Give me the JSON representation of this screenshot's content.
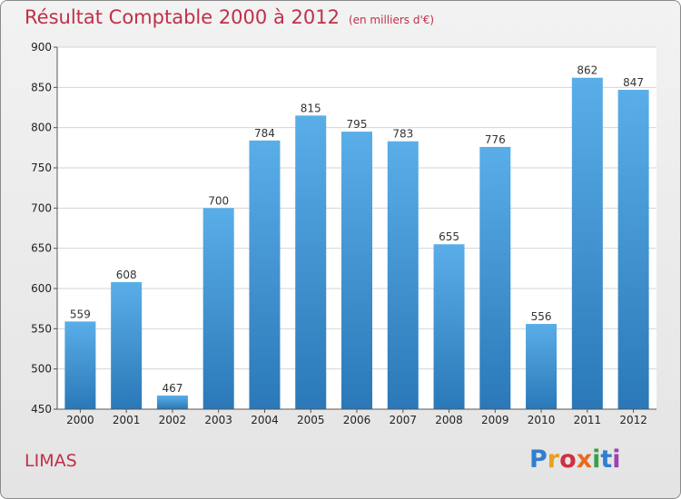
{
  "title": "Résultat Comptable 2000 à 2012",
  "subtitle": "(en milliers d'€)",
  "place": "LIMAS",
  "logo": {
    "letters": [
      "P",
      "r",
      "o",
      "x",
      "i",
      "t",
      "i"
    ],
    "colors": [
      "#2f7fd0",
      "#e8a020",
      "#d03040",
      "#e86a20",
      "#38a048",
      "#2f7fd0",
      "#a040b0"
    ]
  },
  "chart_data": {
    "type": "bar",
    "title": "Résultat Comptable 2000 à 2012",
    "xlabel": "",
    "ylabel": "",
    "categories": [
      "2000",
      "2001",
      "2002",
      "2003",
      "2004",
      "2005",
      "2006",
      "2007",
      "2008",
      "2009",
      "2010",
      "2011",
      "2012"
    ],
    "values": [
      559,
      608,
      467,
      700,
      784,
      815,
      795,
      783,
      655,
      776,
      556,
      862,
      847
    ],
    "ylim": [
      450,
      900
    ],
    "yticks": [
      450,
      500,
      550,
      600,
      650,
      700,
      750,
      800,
      850,
      900
    ],
    "grid": true,
    "bar_color_top": "#5aaee8",
    "bar_color_bottom": "#2a78b8"
  }
}
